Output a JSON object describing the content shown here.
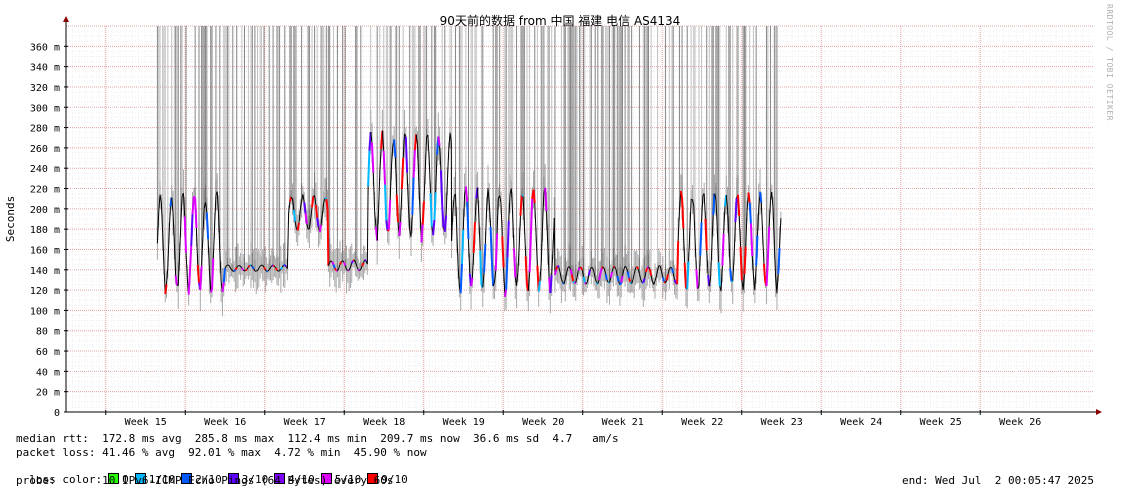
{
  "chart_data": {
    "type": "line",
    "title": "90天前的数据 from 中国 福建 电信 AS4134",
    "ylabel": "Seconds",
    "ylim": [
      0,
      380
    ],
    "y_ticks": [
      {
        "value": 0,
        "label": "0"
      },
      {
        "value": 20,
        "label": "20 m"
      },
      {
        "value": 40,
        "label": "40 m"
      },
      {
        "value": 60,
        "label": "60 m"
      },
      {
        "value": 80,
        "label": "80 m"
      },
      {
        "value": 100,
        "label": "100 m"
      },
      {
        "value": 120,
        "label": "120 m"
      },
      {
        "value": 140,
        "label": "140 m"
      },
      {
        "value": 160,
        "label": "160 m"
      },
      {
        "value": 180,
        "label": "180 m"
      },
      {
        "value": 200,
        "label": "200 m"
      },
      {
        "value": 220,
        "label": "220 m"
      },
      {
        "value": 240,
        "label": "240 m"
      },
      {
        "value": 260,
        "label": "260 m"
      },
      {
        "value": 280,
        "label": "280 m"
      },
      {
        "value": 300,
        "label": "300 m"
      },
      {
        "value": 320,
        "label": "320 m"
      },
      {
        "value": 340,
        "label": "340 m"
      },
      {
        "value": 360,
        "label": "360 m"
      }
    ],
    "x_categories": [
      "Week 15",
      "Week 16",
      "Week 17",
      "Week 18",
      "Week 19",
      "Week 20",
      "Week 21",
      "Week 22",
      "Week 23",
      "Week 24",
      "Week 25",
      "Week 26"
    ],
    "grid": true,
    "series": [
      {
        "name": "median rtt",
        "segments": [
          {
            "week_start": 15.65,
            "week_end": 16.5,
            "low": 112,
            "high": 220
          },
          {
            "week_start": 16.5,
            "week_end": 17.3,
            "low": 138,
            "high": 145
          },
          {
            "week_start": 17.3,
            "week_end": 17.8,
            "low": 175,
            "high": 215
          },
          {
            "week_start": 17.8,
            "week_end": 18.3,
            "low": 138,
            "high": 150
          },
          {
            "week_start": 18.3,
            "week_end": 19.35,
            "low": 165,
            "high": 280
          },
          {
            "week_start": 19.35,
            "week_end": 20.65,
            "low": 112,
            "high": 225
          },
          {
            "week_start": 20.65,
            "week_end": 22.2,
            "low": 125,
            "high": 145
          },
          {
            "week_start": 22.2,
            "week_end": 23.5,
            "low": 115,
            "high": 222
          }
        ]
      }
    ]
  },
  "watermark": "RRDTOOL / TOBI OETIKER",
  "stats": {
    "median_rtt": "median rtt:  172.8 ms avg  285.8 ms max  112.4 ms min  209.7 ms now  36.6 ms sd  4.7   am/s",
    "packet_loss": "packet loss: 41.46 % avg  92.01 % max  4.72 % min  45.90 % now",
    "loss_color_label": "loss color:",
    "loss_colors": [
      {
        "label": "0",
        "color": "#26ff00"
      },
      {
        "label": "1/10",
        "color": "#00b8ff"
      },
      {
        "label": "2/10",
        "color": "#0059ff"
      },
      {
        "label": "3/10",
        "color": "#5e00ff"
      },
      {
        "label": "4/10",
        "color": "#7e00ff"
      },
      {
        "label": "5/10",
        "color": "#dd00ff"
      },
      {
        "label": "9/10",
        "color": "#ff0000"
      }
    ],
    "probe": "probe:       10 IPv6-ICMP Echo Pings (64 Bytes) every 60s",
    "end": "end: Wed Jul  2 00:05:47 2025"
  }
}
